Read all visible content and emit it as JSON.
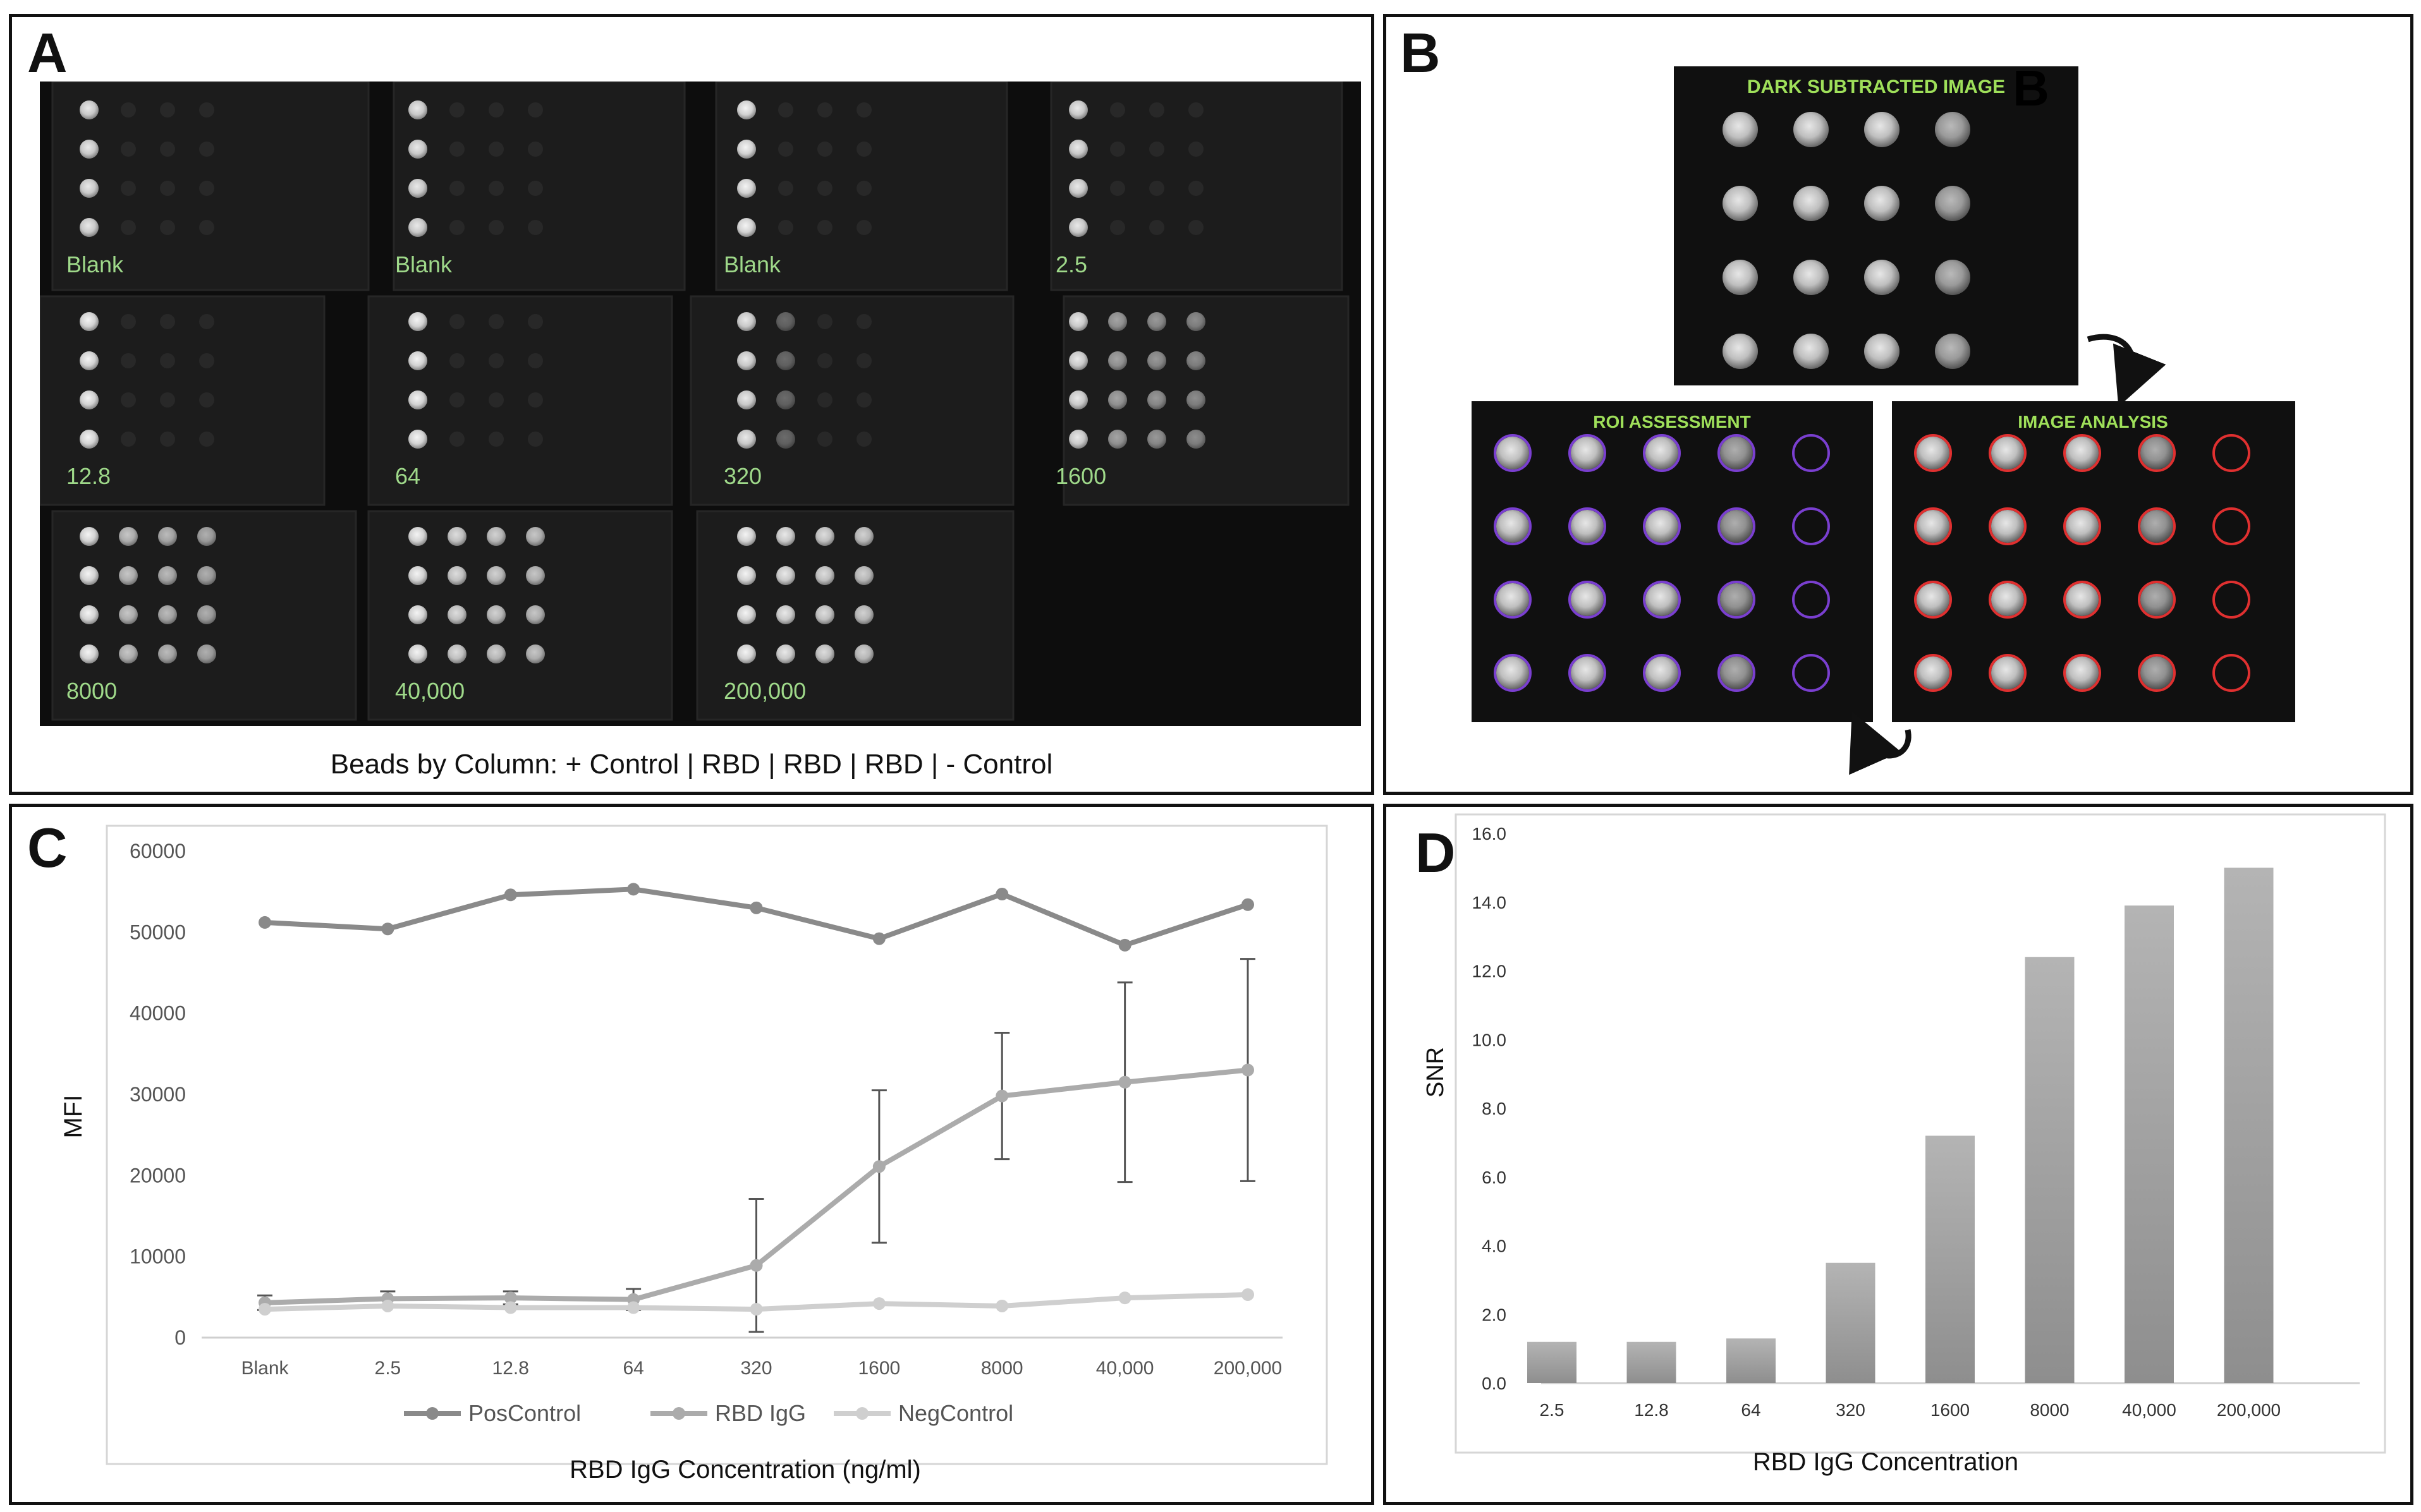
{
  "panels": {
    "A": {
      "letter": "A",
      "overlay_letter": "A",
      "caption": "Beads by Column: + Control | RBD | RBD | RBD | - Control",
      "tiles": [
        {
          "label": "Blank",
          "columns": 1,
          "brightness": [
            0.9
          ]
        },
        {
          "label": "Blank",
          "columns": 1,
          "brightness": [
            0.9
          ]
        },
        {
          "label": "Blank",
          "columns": 1,
          "brightness": [
            0.95
          ]
        },
        {
          "label": "2.5",
          "columns": 1,
          "brightness": [
            0.9
          ]
        },
        {
          "label": "12.8",
          "columns": 1,
          "brightness": [
            0.95
          ]
        },
        {
          "label": "64",
          "columns": 1,
          "brightness": [
            0.95
          ]
        },
        {
          "label": "320",
          "columns": 2,
          "brightness": [
            0.9,
            0.35
          ]
        },
        {
          "label": "1600",
          "columns": 4,
          "brightness": [
            0.9,
            0.6,
            0.55,
            0.5
          ]
        },
        {
          "label": "8000",
          "columns": 4,
          "brightness": [
            0.95,
            0.75,
            0.7,
            0.65
          ]
        },
        {
          "label": "40,000",
          "columns": 4,
          "brightness": [
            0.95,
            0.85,
            0.8,
            0.75
          ]
        },
        {
          "label": "200,000",
          "columns": 4,
          "brightness": [
            0.95,
            0.9,
            0.85,
            0.8
          ]
        }
      ],
      "label_color": "#9fd98a"
    },
    "B": {
      "letter": "B",
      "overlay_letter": "B",
      "top_title": "DARK SUBTRACTED IMAGE",
      "left_title": "ROI ASSESSMENT",
      "right_title": "IMAGE ANALYSIS",
      "roi_color": "#7a3fd0",
      "analysis_color": "#e03030",
      "title_color": "#9fe05a"
    },
    "C": {
      "letter": "C"
    },
    "D": {
      "letter": "D"
    }
  },
  "chart_data": [
    {
      "panel": "C",
      "type": "line",
      "categories": [
        "Blank",
        "2.5",
        "12.8",
        "64",
        "320",
        "1600",
        "8000",
        "40,000",
        "200,000"
      ],
      "xlabel": "RBD IgG Concentration (ng/ml)",
      "ylabel": "MFI",
      "ylim": [
        0,
        60000
      ],
      "yticks": [
        "0",
        "10000",
        "20000",
        "30000",
        "40000",
        "50000",
        "60000"
      ],
      "grid": false,
      "legend_position": "bottom",
      "series": [
        {
          "name": "PosControl",
          "color": "#8a8a8a",
          "values": [
            51200,
            50400,
            54600,
            55300,
            53000,
            49200,
            54700,
            48400,
            53400
          ]
        },
        {
          "name": "RBD IgG",
          "color": "#ababab",
          "values": [
            4300,
            4800,
            4900,
            4700,
            8900,
            21100,
            29800,
            31500,
            33000
          ],
          "error": [
            900,
            900,
            800,
            1300,
            8200,
            9400,
            7800,
            12300,
            13700
          ]
        },
        {
          "name": "NegControl",
          "color": "#cfcfcf",
          "values": [
            3500,
            3900,
            3700,
            3700,
            3500,
            4200,
            3900,
            4900,
            5300
          ]
        }
      ]
    },
    {
      "panel": "D",
      "type": "bar",
      "categories": [
        "2.5",
        "12.8",
        "64",
        "320",
        "1600",
        "8000",
        "40,000",
        "200,000"
      ],
      "values": [
        1.2,
        1.2,
        1.3,
        3.5,
        7.2,
        12.4,
        13.9,
        15.0
      ],
      "xlabel": "RBD IgG Concentration",
      "ylabel": "SNR",
      "ylim": [
        0,
        16
      ],
      "yticks": [
        "0.0",
        "2.0",
        "4.0",
        "6.0",
        "8.0",
        "10.0",
        "12.0",
        "14.0",
        "16.0"
      ],
      "grid": false
    }
  ]
}
